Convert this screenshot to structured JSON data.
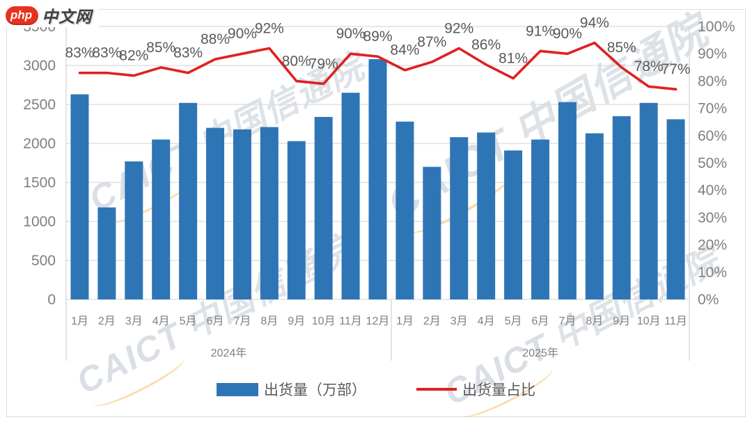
{
  "logo": {
    "badge": "php",
    "site": "中文网"
  },
  "watermark": {
    "brand": "CAICT",
    "org": "中国信通院"
  },
  "legend": [
    {
      "label": "出货量（万部）",
      "type": "bar"
    },
    {
      "label": "出货量占比",
      "type": "line"
    }
  ],
  "colors": {
    "bar": "#2E75B6",
    "line": "#E02020",
    "grid": "#DBDBDB",
    "axis_line": "#D6D6D6",
    "axis_text": "#7F7F7F",
    "data_label": "#595959",
    "legend_text": "#595959",
    "logo_red": "#E8321F",
    "logo_text": "#3F3F3F",
    "watermark": "#C3CBD5",
    "swoosh": "#F3B34F"
  },
  "chart_data": {
    "type": "bar",
    "combo": "bar+line",
    "title": "",
    "grid": true,
    "legend_position": "bottom",
    "groups": [
      {
        "year": "2024年",
        "months": [
          "1月",
          "2月",
          "3月",
          "4月",
          "5月",
          "6月",
          "7月",
          "8月",
          "9月",
          "10月",
          "11月",
          "12月"
        ]
      },
      {
        "year": "2025年",
        "months": [
          "1月",
          "2月",
          "3月",
          "4月",
          "5月",
          "6月",
          "7月",
          "8月",
          "9月",
          "10月",
          "11月"
        ]
      }
    ],
    "series": [
      {
        "name": "出货量（万部）",
        "type": "bar",
        "axis": "left",
        "values": [
          2630,
          1180,
          1770,
          2050,
          2520,
          2200,
          2180,
          2210,
          2030,
          2340,
          2650,
          3080,
          2280,
          1700,
          2080,
          2140,
          1910,
          2050,
          2530,
          2130,
          2350,
          2520,
          2310
        ]
      },
      {
        "name": "出货量占比",
        "type": "line",
        "axis": "right",
        "values": [
          83,
          83,
          82,
          85,
          83,
          88,
          90,
          92,
          80,
          79,
          90,
          89,
          84,
          87,
          92,
          86,
          81,
          91,
          90,
          94,
          85,
          78,
          77
        ],
        "labels": [
          "83%",
          "83%",
          "82%",
          "85%",
          "83%",
          "88%",
          "90%",
          "92%",
          "80%",
          "79%",
          "90%",
          "89%",
          "84%",
          "87%",
          "92%",
          "86%",
          "81%",
          "91%",
          "90%",
          "94%",
          "85%",
          "78%",
          "77%"
        ]
      }
    ],
    "left_axis": {
      "min": 0,
      "max": 3500,
      "step": 500,
      "ticks": [
        "0",
        "500",
        "1000",
        "1500",
        "2000",
        "2500",
        "3000",
        "3500"
      ]
    },
    "right_axis": {
      "min": 0,
      "max": 100,
      "step": 10,
      "ticks": [
        "0%",
        "10%",
        "20%",
        "30%",
        "40%",
        "50%",
        "60%",
        "70%",
        "80%",
        "90%",
        "100%"
      ]
    }
  }
}
